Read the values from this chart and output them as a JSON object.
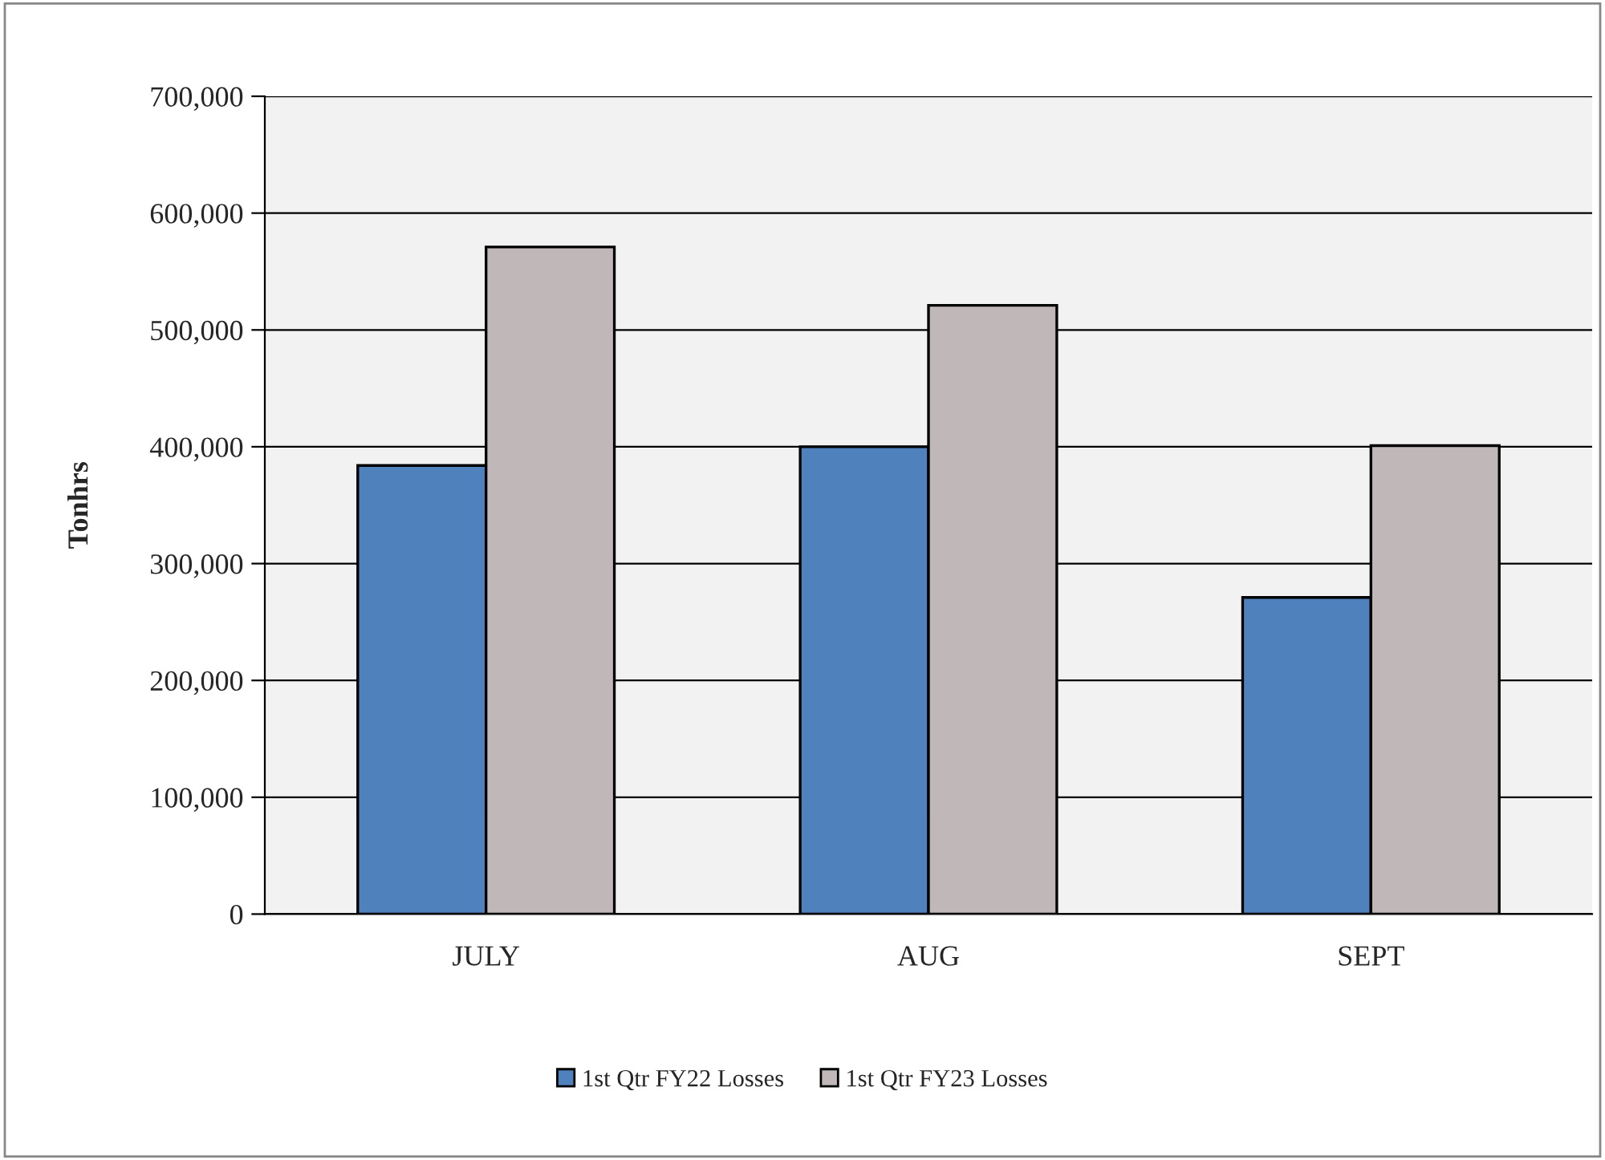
{
  "chart_data": {
    "type": "bar",
    "ylabel": "Tonhrs",
    "categories": [
      "JULY",
      "AUG",
      "SEPT"
    ],
    "series": [
      {
        "name": "1st Qtr FY22 Losses",
        "color": "#4f81bd",
        "values": [
          384000,
          400000,
          271000
        ]
      },
      {
        "name": "1st Qtr FY23 Losses",
        "color": "#c0b8b8",
        "values": [
          571000,
          521000,
          401000
        ]
      }
    ],
    "ylim": [
      0,
      700000
    ],
    "yticks": [
      0,
      {
        "value": 100000,
        "label": "100,000"
      },
      {
        "value": 200000,
        "label": "200,000"
      },
      {
        "value": 300000,
        "label": "300,000"
      },
      {
        "value": 400000,
        "label": "400,000"
      },
      {
        "value": 500000,
        "label": "500,000"
      },
      {
        "value": 600000,
        "label": "600,000"
      },
      {
        "value": 700000,
        "label": "700,000"
      }
    ],
    "grid": "y",
    "legend": "bottom"
  }
}
